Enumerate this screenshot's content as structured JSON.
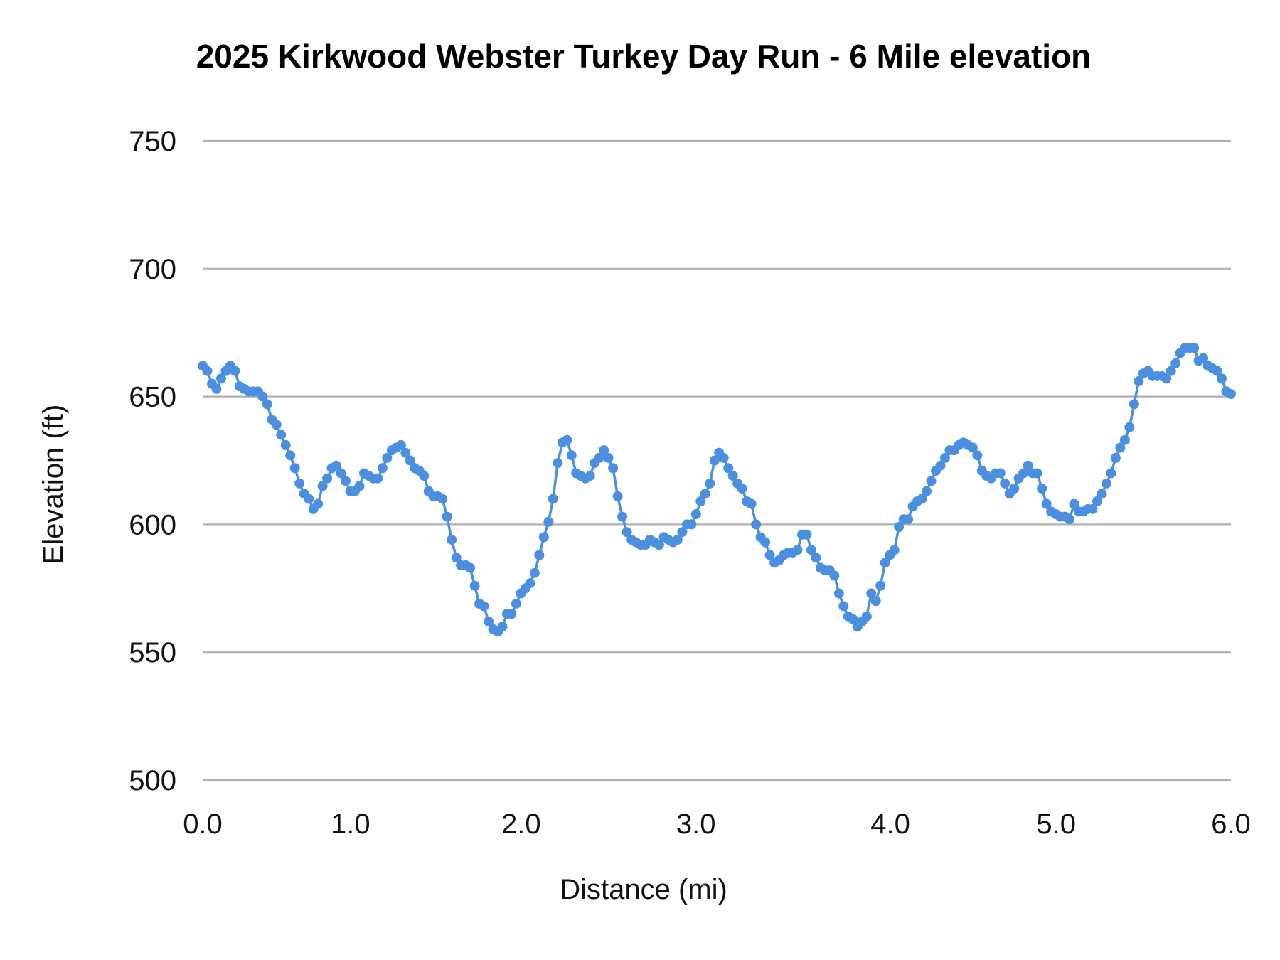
{
  "chart_data": {
    "type": "line",
    "title": "2025 Kirkwood Webster Turkey Day Run - 6 Mile elevation",
    "xlabel": "Distance (mi)",
    "ylabel": "Elevation (ft)",
    "xlim": [
      0,
      6
    ],
    "ylim": [
      500,
      750
    ],
    "x_ticks": [
      "0.0",
      "1.0",
      "2.0",
      "3.0",
      "4.0",
      "5.0",
      "6.0"
    ],
    "y_ticks": [
      "500",
      "550",
      "600",
      "650",
      "700",
      "750"
    ],
    "grid": true,
    "markers": true,
    "color": "#4a8fe0",
    "elevation_ft": [
      662,
      660,
      655,
      653,
      657,
      660,
      662,
      660,
      654,
      653,
      652,
      652,
      652,
      650,
      647,
      641,
      639,
      635,
      631,
      627,
      622,
      616,
      612,
      610,
      606,
      608,
      615,
      618,
      622,
      623,
      620,
      617,
      613,
      613,
      615,
      620,
      619,
      618,
      618,
      622,
      626,
      629,
      630,
      631,
      628,
      625,
      622,
      621,
      619,
      613,
      611,
      611,
      610,
      603,
      594,
      587,
      584,
      584,
      583,
      576,
      569,
      568,
      562,
      559,
      558,
      560,
      565,
      565,
      569,
      573,
      575,
      577,
      581,
      588,
      595,
      601,
      610,
      624,
      632,
      633,
      627,
      620,
      619,
      618,
      619,
      624,
      626,
      629,
      626,
      622,
      611,
      603,
      597,
      594,
      593,
      592,
      592,
      594,
      593,
      592,
      595,
      594,
      593,
      594,
      597,
      600,
      600,
      604,
      609,
      612,
      616,
      625,
      628,
      626,
      622,
      619,
      616,
      614,
      609,
      608,
      600,
      595,
      593,
      588,
      585,
      586,
      588,
      589,
      589,
      590,
      596,
      596,
      590,
      587,
      583,
      582,
      582,
      580,
      573,
      568,
      564,
      563,
      560,
      562,
      564,
      573,
      570,
      576,
      585,
      588,
      590,
      599,
      602,
      602,
      607,
      609,
      610,
      613,
      617,
      621,
      623,
      626,
      629,
      629,
      631,
      632,
      631,
      630,
      627,
      621,
      619,
      618,
      620,
      620,
      616,
      612,
      614,
      618,
      620,
      623,
      620,
      620,
      614,
      608,
      605,
      604,
      603,
      603,
      602,
      608,
      605,
      605,
      606,
      606,
      609,
      612,
      616,
      620,
      626,
      630,
      633,
      638,
      647,
      656,
      659,
      660,
      658,
      658,
      658,
      657,
      660,
      663,
      667,
      669,
      669,
      669,
      664,
      665,
      662,
      661,
      660,
      657,
      652,
      651
    ]
  }
}
